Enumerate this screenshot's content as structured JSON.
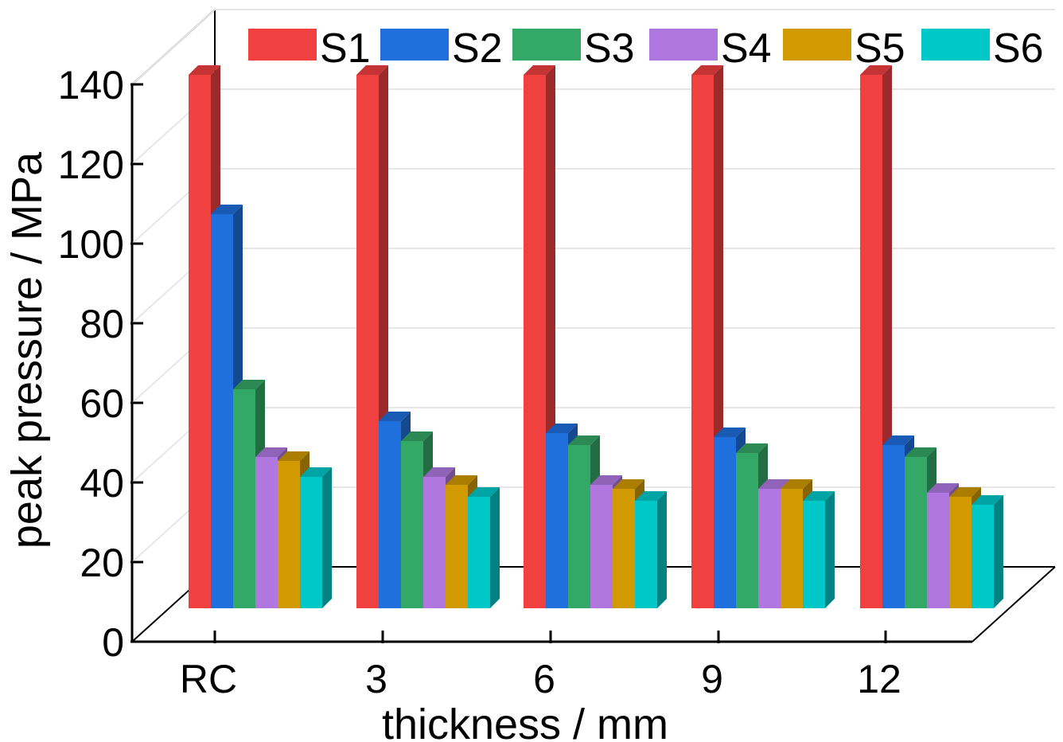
{
  "chart_data": {
    "type": "bar",
    "style": "3d-clustered",
    "categories": [
      "RC",
      "3",
      "6",
      "9",
      "12"
    ],
    "xlabel": "thickness / mm",
    "ylabel": "peak pressure / MPa",
    "ylim": [
      0,
      140
    ],
    "yticks": [
      0,
      20,
      40,
      60,
      80,
      100,
      120,
      140
    ],
    "grid": true,
    "legend_position": "top",
    "series": [
      {
        "name": "S1",
        "color": "#f04040",
        "values": [
          134,
          134,
          134,
          134,
          134
        ]
      },
      {
        "name": "S2",
        "color": "#1f6fdc",
        "values": [
          99,
          47,
          44,
          43,
          41
        ]
      },
      {
        "name": "S3",
        "color": "#34a866",
        "values": [
          55,
          42,
          41,
          39,
          38
        ]
      },
      {
        "name": "S4",
        "color": "#b077e0",
        "values": [
          38,
          33,
          31,
          30,
          29
        ]
      },
      {
        "name": "S5",
        "color": "#d19a00",
        "values": [
          37,
          31,
          30,
          30,
          28
        ]
      },
      {
        "name": "S6",
        "color": "#00c8c8",
        "values": [
          33,
          28,
          27,
          27,
          26
        ]
      }
    ]
  }
}
